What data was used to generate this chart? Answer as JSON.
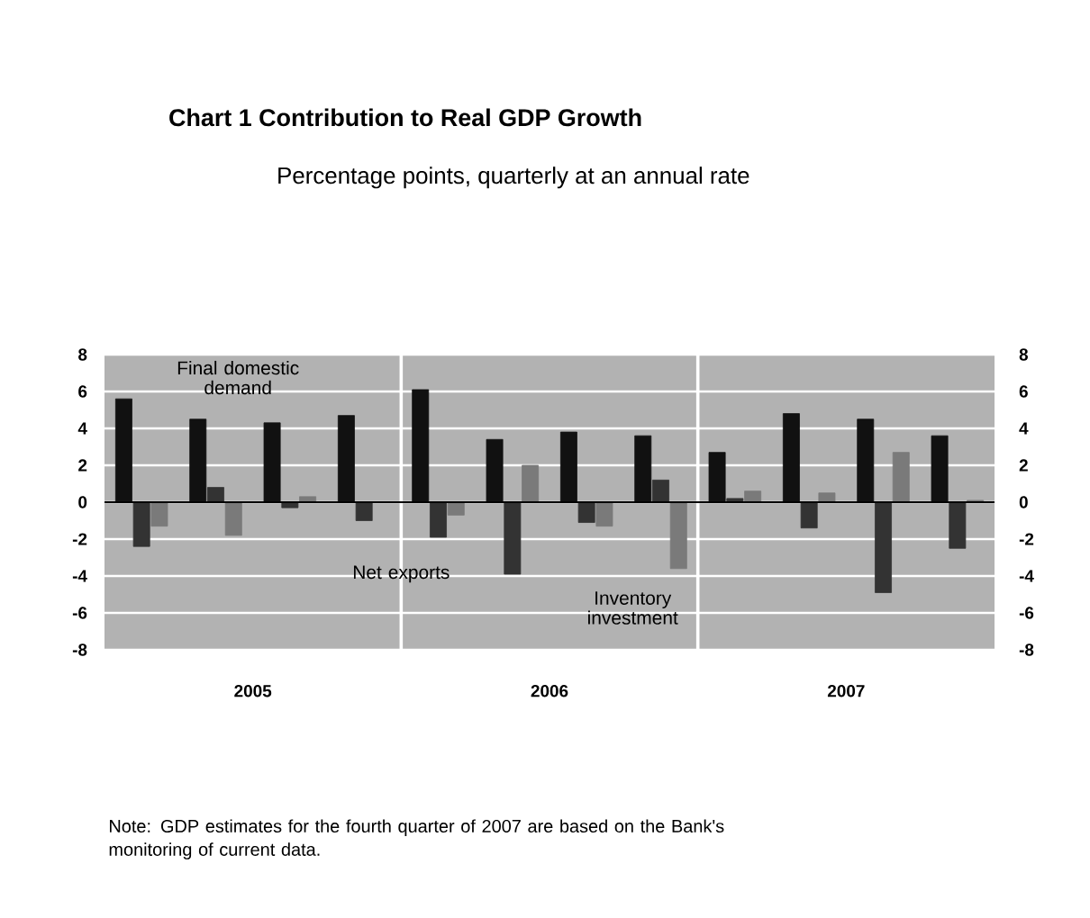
{
  "chart_data": {
    "type": "bar",
    "title": "Chart 1    Contribution to Real GDP Growth",
    "subtitle": "Percentage points, quarterly at an annual rate",
    "x": [
      2005.125,
      2005.375,
      2005.625,
      2005.875,
      2006.125,
      2006.375,
      2006.625,
      2006.875,
      2007.125,
      2007.375,
      2007.625,
      2007.875
    ],
    "xlim": [
      2005,
      2008
    ],
    "xticks": [
      {
        "value": 2005.5,
        "label": "2005"
      },
      {
        "value": 2006,
        "label": null
      },
      {
        "value": 2006.5,
        "label": "2006"
      },
      {
        "value": 2007,
        "label": null
      },
      {
        "value": 2007.5,
        "label": "2007"
      }
    ],
    "series": [
      {
        "name": "Final domestic demand",
        "color": "#111111",
        "values": [
          5.6,
          4.5,
          4.3,
          4.7,
          6.1,
          3.4,
          3.8,
          3.6,
          2.7,
          4.8,
          4.5,
          3.6
        ]
      },
      {
        "name": "Net exports",
        "color": "#333333",
        "values": [
          -2.4,
          0.8,
          -0.3,
          -1.0,
          -1.9,
          -3.9,
          -1.1,
          1.2,
          0.2,
          -1.4,
          -4.9,
          -2.5
        ]
      },
      {
        "name": "Inventory investment",
        "color": "#7a7a7a",
        "values": [
          -1.3,
          -1.8,
          0.3,
          0.0,
          -0.7,
          2.0,
          -1.3,
          -3.6,
          0.6,
          0.5,
          2.7,
          0.1
        ]
      }
    ],
    "ylim": [
      -8,
      8
    ],
    "yticks": [
      -8,
      -6,
      -4,
      -2,
      0,
      2,
      4,
      6,
      8
    ],
    "y2lim": [
      -8,
      8
    ],
    "y2ticks": [
      -8,
      -6,
      -4,
      -2,
      0,
      2,
      4,
      6,
      8
    ],
    "grid": true,
    "ref_lines": [
      {
        "axis": "y",
        "value": 0,
        "color": "#000000"
      }
    ],
    "annotations": [
      "Note: GDP estimates for the fourth quarter of 2007 are based on the Bank's monitoring of current data."
    ]
  }
}
